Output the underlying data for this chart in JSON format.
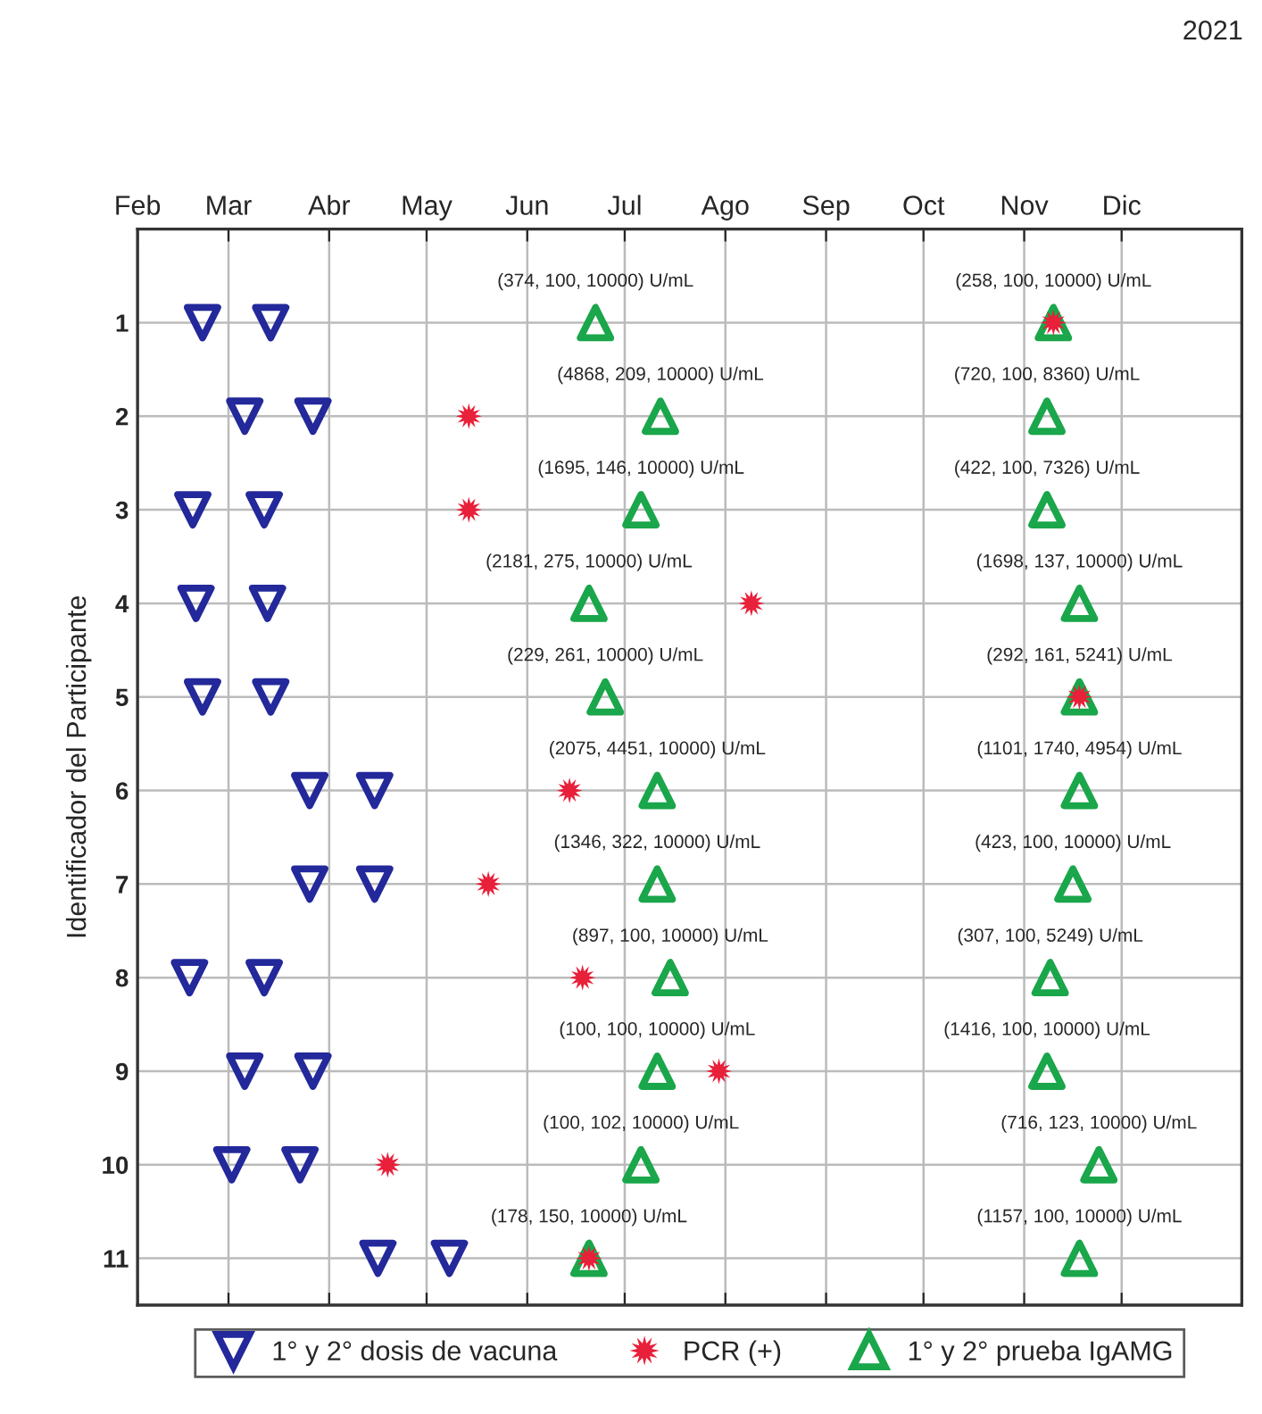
{
  "chart_data": {
    "type": "scatter",
    "ylabel": "Identificador del Participante",
    "xlim": [
      "2021-02-01",
      "2022-01-07"
    ],
    "xticks": [
      {
        "value": "2021-02-01",
        "label": "Feb"
      },
      {
        "value": "2021-03-01",
        "label": "Mar"
      },
      {
        "value": "2021-04-01",
        "label": "Abr"
      },
      {
        "value": "2021-05-01",
        "label": "May"
      },
      {
        "value": "2021-06-01",
        "label": "Jun"
      },
      {
        "value": "2021-07-01",
        "label": "Jul"
      },
      {
        "value": "2021-08-01",
        "label": "Ago"
      },
      {
        "value": "2021-09-01",
        "label": "Sep"
      },
      {
        "value": "2021-10-01",
        "label": "Oct"
      },
      {
        "value": "2021-11-01",
        "label": "Nov"
      },
      {
        "value": "2021-12-01",
        "label": "Dic"
      }
    ],
    "ylim": [
      11.5,
      0
    ],
    "yticks": [
      1,
      2,
      3,
      4,
      5,
      6,
      7,
      8,
      9,
      10,
      11
    ],
    "grid": true,
    "legend": "bottom",
    "series": [
      {
        "name": "1° y 2° dosis de vacuna",
        "color": "#23289a",
        "marker": "triangle_down",
        "x": [
          "2021-02-21",
          "2021-03-14",
          "2021-03-06",
          "2021-03-27",
          "2021-02-18",
          "2021-03-12",
          "2021-02-19",
          "2021-03-13",
          "2021-02-21",
          "2021-03-14",
          "2021-03-26",
          "2021-04-15",
          "2021-03-26",
          "2021-04-15",
          "2021-02-17",
          "2021-03-12",
          "2021-03-06",
          "2021-03-27",
          "2021-03-02",
          "2021-03-23",
          "2021-04-16",
          "2021-05-08"
        ],
        "values": [
          1,
          1,
          2,
          2,
          3,
          3,
          4,
          4,
          5,
          5,
          6,
          6,
          7,
          7,
          8,
          8,
          9,
          9,
          10,
          10,
          11,
          11
        ]
      },
      {
        "name": "PCR (+)",
        "color": "#e8203a",
        "marker": "star",
        "x": [
          "2021-11-10",
          "2021-05-14",
          "2021-05-14",
          "2021-08-09",
          "2021-11-18",
          "2021-06-14",
          "2021-05-20",
          "2021-06-18",
          "2021-07-30",
          "2021-04-19",
          "2021-06-20"
        ],
        "values": [
          1,
          2,
          3,
          4,
          5,
          6,
          7,
          8,
          9,
          10,
          11
        ]
      },
      {
        "name": "1° y 2° prueba IgAMG",
        "color": "#1aa64a",
        "marker": "triangle",
        "x": [
          "2021-06-22",
          "2021-11-10",
          "2021-07-12",
          "2021-11-08",
          "2021-07-06",
          "2021-11-08",
          "2021-06-20",
          "2021-11-18",
          "2021-06-25",
          "2021-11-18",
          "2021-07-11",
          "2021-11-18",
          "2021-07-11",
          "2021-11-16",
          "2021-07-15",
          "2021-11-09",
          "2021-07-11",
          "2021-11-08",
          "2021-07-06",
          "2021-11-24",
          "2021-06-20",
          "2021-11-18"
        ],
        "values": [
          1,
          1,
          2,
          2,
          3,
          3,
          4,
          4,
          5,
          5,
          6,
          6,
          7,
          7,
          8,
          8,
          9,
          9,
          10,
          10,
          11,
          11
        ]
      }
    ],
    "annotations": [
      "2021",
      {
        "text": "(374, 100, 10000) U/mL",
        "x": "2021-06-22",
        "y": 1
      },
      {
        "text": "(258, 100, 10000) U/mL",
        "x": "2021-11-10",
        "y": 1
      },
      {
        "text": "(4868, 209, 10000) U/mL",
        "x": "2021-07-12",
        "y": 2
      },
      {
        "text": "(720, 100, 8360) U/mL",
        "x": "2021-11-08",
        "y": 2
      },
      {
        "text": "(1695, 146, 10000) U/mL",
        "x": "2021-07-06",
        "y": 3
      },
      {
        "text": "(422, 100, 7326) U/mL",
        "x": "2021-11-08",
        "y": 3
      },
      {
        "text": "(2181, 275, 10000) U/mL",
        "x": "2021-06-20",
        "y": 4
      },
      {
        "text": "(1698, 137, 10000) U/mL",
        "x": "2021-11-18",
        "y": 4
      },
      {
        "text": "(229, 261, 10000) U/mL",
        "x": "2021-06-25",
        "y": 5
      },
      {
        "text": "(292, 161, 5241) U/mL",
        "x": "2021-11-18",
        "y": 5
      },
      {
        "text": "(2075, 4451, 10000) U/mL",
        "x": "2021-07-11",
        "y": 6
      },
      {
        "text": "(1101, 1740, 4954) U/mL",
        "x": "2021-11-18",
        "y": 6
      },
      {
        "text": "(1346, 322, 10000) U/mL",
        "x": "2021-07-11",
        "y": 7
      },
      {
        "text": "(423, 100, 10000) U/mL",
        "x": "2021-11-16",
        "y": 7
      },
      {
        "text": "(897, 100, 10000) U/mL",
        "x": "2021-07-15",
        "y": 8
      },
      {
        "text": "(307, 100, 5249) U/mL",
        "x": "2021-11-09",
        "y": 8
      },
      {
        "text": "(100, 100, 10000) U/mL",
        "x": "2021-07-11",
        "y": 9
      },
      {
        "text": "(1416, 100, 10000) U/mL",
        "x": "2021-11-08",
        "y": 9
      },
      {
        "text": "(100, 102, 10000) U/mL",
        "x": "2021-07-06",
        "y": 10
      },
      {
        "text": "(716, 123, 10000) U/mL",
        "x": "2021-11-24",
        "y": 10
      },
      {
        "text": "(178, 150, 10000) U/mL",
        "x": "2021-06-20",
        "y": 11
      },
      {
        "text": "(1157, 100, 10000) U/mL",
        "x": "2021-11-18",
        "y": 11
      }
    ]
  }
}
